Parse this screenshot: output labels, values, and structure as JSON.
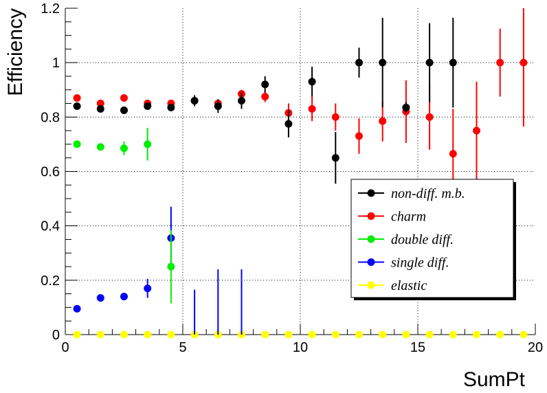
{
  "chart_data": {
    "type": "scatter",
    "xlabel": "SumPt",
    "ylabel": "Efficiency",
    "xlim": [
      0,
      20
    ],
    "ylim": [
      0,
      1.2
    ],
    "x_ticks": [
      "0",
      "5",
      "10",
      "15",
      "20"
    ],
    "y_ticks": [
      "0",
      "0.2",
      "0.4",
      "0.6",
      "0.8",
      "1",
      "1.2"
    ],
    "grid": true,
    "legend_position": "center-right",
    "series": [
      {
        "name": "non-diff. m.b.",
        "color": "#000000",
        "points": [
          {
            "x": 0.5,
            "y": 0.84,
            "err": 0.01
          },
          {
            "x": 1.5,
            "y": 0.83,
            "err": 0.01
          },
          {
            "x": 2.5,
            "y": 0.825,
            "err": 0.01
          },
          {
            "x": 3.5,
            "y": 0.84,
            "err": 0.012
          },
          {
            "x": 4.5,
            "y": 0.835,
            "err": 0.012
          },
          {
            "x": 5.5,
            "y": 0.86,
            "err": 0.02
          },
          {
            "x": 6.5,
            "y": 0.84,
            "err": 0.025
          },
          {
            "x": 7.5,
            "y": 0.86,
            "err": 0.03
          },
          {
            "x": 8.5,
            "y": 0.92,
            "err": 0.03
          },
          {
            "x": 9.5,
            "y": 0.775,
            "err": 0.05
          },
          {
            "x": 10.5,
            "y": 0.93,
            "err": 0.055
          },
          {
            "x": 11.5,
            "y": 0.65,
            "err": 0.095
          },
          {
            "x": 12.5,
            "y": 1.0,
            "err": 0.055
          },
          {
            "x": 13.5,
            "y": 1.0,
            "err": 0.165
          },
          {
            "x": 14.5,
            "y": 0.835,
            "err": 0.02
          },
          {
            "x": 15.5,
            "y": 1.0,
            "err": 0.145
          },
          {
            "x": 16.5,
            "y": 1.0,
            "err": 0.165
          }
        ]
      },
      {
        "name": "charm",
        "color": "#ff0000",
        "points": [
          {
            "x": 0.5,
            "y": 0.87,
            "err": 0.01
          },
          {
            "x": 1.5,
            "y": 0.85,
            "err": 0.01
          },
          {
            "x": 2.5,
            "y": 0.87,
            "err": 0.01
          },
          {
            "x": 3.5,
            "y": 0.85,
            "err": 0.01
          },
          {
            "x": 4.5,
            "y": 0.85,
            "err": 0.01
          },
          {
            "x": 5.5,
            "y": 0.86,
            "err": 0.01
          },
          {
            "x": 6.5,
            "y": 0.85,
            "err": 0.015
          },
          {
            "x": 7.5,
            "y": 0.885,
            "err": 0.015
          },
          {
            "x": 8.5,
            "y": 0.875,
            "err": 0.02
          },
          {
            "x": 9.5,
            "y": 0.815,
            "err": 0.035
          },
          {
            "x": 10.5,
            "y": 0.83,
            "err": 0.045
          },
          {
            "x": 11.5,
            "y": 0.8,
            "err": 0.05
          },
          {
            "x": 12.5,
            "y": 0.73,
            "err": 0.065
          },
          {
            "x": 13.5,
            "y": 0.785,
            "err": 0.075
          },
          {
            "x": 14.5,
            "y": 0.82,
            "err": 0.115
          },
          {
            "x": 15.5,
            "y": 0.8,
            "err": 0.12
          },
          {
            "x": 16.5,
            "y": 0.665,
            "err": 0.165
          },
          {
            "x": 17.5,
            "y": 0.75,
            "err": 0.18
          },
          {
            "x": 18.5,
            "y": 1.0,
            "err": 0.125
          },
          {
            "x": 19.5,
            "y": 1.0,
            "err": 0.235
          }
        ]
      },
      {
        "name": "double diff.",
        "color": "#00ee00",
        "points": [
          {
            "x": 0.5,
            "y": 0.7,
            "err": 0.01
          },
          {
            "x": 1.5,
            "y": 0.69,
            "err": 0.01
          },
          {
            "x": 2.5,
            "y": 0.685,
            "err": 0.025
          },
          {
            "x": 3.5,
            "y": 0.7,
            "err": 0.06
          },
          {
            "x": 4.5,
            "y": 0.25,
            "err": 0.135
          }
        ]
      },
      {
        "name": "single diff.",
        "color": "#0000ff",
        "points": [
          {
            "x": 0.5,
            "y": 0.095,
            "err": 0.008
          },
          {
            "x": 1.5,
            "y": 0.135,
            "err": 0.01
          },
          {
            "x": 2.5,
            "y": 0.14,
            "err": 0.012
          },
          {
            "x": 3.5,
            "y": 0.17,
            "err": 0.035
          },
          {
            "x": 4.5,
            "y": 0.355,
            "err": 0.115
          },
          {
            "x": 5.5,
            "y": 0.0,
            "err_low": 0.0,
            "err_high": 0.165
          },
          {
            "x": 6.5,
            "y": 0.0,
            "err_low": 0.0,
            "err_high": 0.24
          },
          {
            "x": 7.5,
            "y": 0.0,
            "err_low": 0.0,
            "err_high": 0.24
          }
        ]
      },
      {
        "name": "elastic",
        "color": "#ffff00",
        "points": [
          {
            "x": 0.5,
            "y": 0,
            "err": 0
          },
          {
            "x": 1.5,
            "y": 0,
            "err": 0
          },
          {
            "x": 2.5,
            "y": 0,
            "err": 0
          },
          {
            "x": 3.5,
            "y": 0,
            "err": 0
          },
          {
            "x": 4.5,
            "y": 0,
            "err": 0
          },
          {
            "x": 5.5,
            "y": 0,
            "err": 0
          },
          {
            "x": 6.5,
            "y": 0,
            "err": 0
          },
          {
            "x": 7.5,
            "y": 0,
            "err": 0
          },
          {
            "x": 8.5,
            "y": 0,
            "err": 0
          },
          {
            "x": 9.5,
            "y": 0,
            "err": 0
          },
          {
            "x": 10.5,
            "y": 0,
            "err": 0
          },
          {
            "x": 11.5,
            "y": 0,
            "err": 0
          },
          {
            "x": 12.5,
            "y": 0,
            "err": 0
          },
          {
            "x": 13.5,
            "y": 0,
            "err": 0
          },
          {
            "x": 14.5,
            "y": 0,
            "err": 0
          },
          {
            "x": 15.5,
            "y": 0,
            "err": 0
          },
          {
            "x": 16.5,
            "y": 0,
            "err": 0
          },
          {
            "x": 17.5,
            "y": 0,
            "err": 0
          },
          {
            "x": 18.5,
            "y": 0,
            "err": 0
          },
          {
            "x": 19.5,
            "y": 0,
            "err": 0
          }
        ]
      }
    ]
  }
}
